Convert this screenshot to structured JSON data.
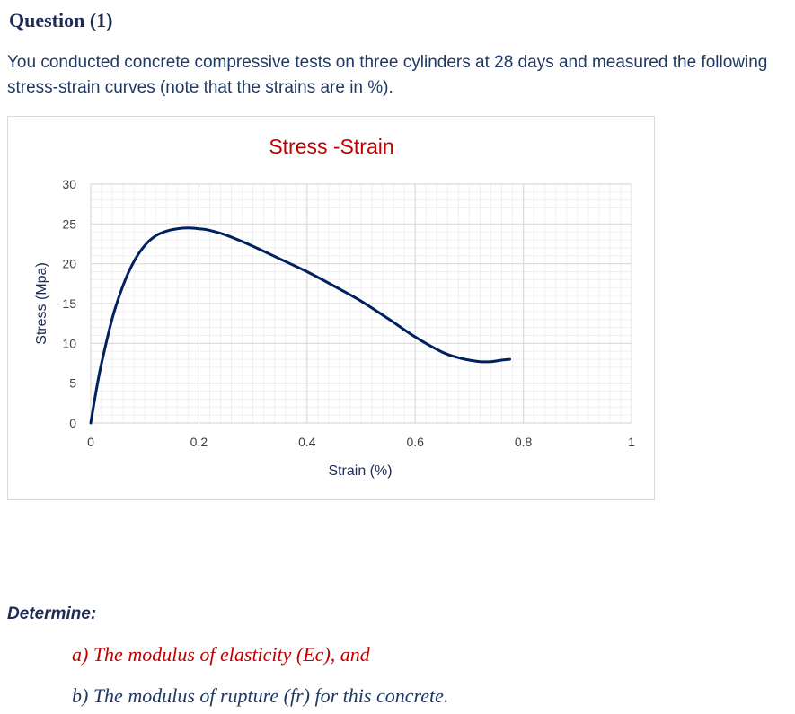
{
  "question": {
    "title": "Question (1)",
    "intro": "You conducted concrete compressive tests on three cylinders at 28 days and measured the following stress-strain curves (note that the strains are in %)."
  },
  "chart_data": {
    "type": "line",
    "title": "Stress -Strain",
    "xlabel": "Strain (%)",
    "ylabel": "Stress (Mpa)",
    "xlim": [
      0,
      1
    ],
    "ylim": [
      0,
      30
    ],
    "xticks": [
      0,
      0.2,
      0.4,
      0.6,
      0.8,
      1
    ],
    "xtick_labels": [
      "0",
      "0.2",
      "0.4",
      "0.6",
      "0.8",
      "1"
    ],
    "yticks": [
      0,
      5,
      10,
      15,
      20,
      25,
      30
    ],
    "ytick_labels": [
      "0",
      "5",
      "10",
      "15",
      "20",
      "25",
      "30"
    ],
    "grid": true,
    "legend": "none",
    "colors": {
      "line": "#002060",
      "title": "#c00000",
      "major_grid": "#d9d9d9",
      "minor_grid": "#efefef"
    },
    "series": [
      {
        "x": [
          0,
          0.01,
          0.02,
          0.04,
          0.06,
          0.08,
          0.1,
          0.12,
          0.14,
          0.16,
          0.18,
          0.2,
          0.22,
          0.25,
          0.3,
          0.35,
          0.4,
          0.45,
          0.5,
          0.55,
          0.6,
          0.65,
          0.68,
          0.7,
          0.72,
          0.74,
          0.76,
          0.775
        ],
        "y": [
          0,
          4,
          7.5,
          13.2,
          17.3,
          20.3,
          22.3,
          23.5,
          24.1,
          24.4,
          24.5,
          24.4,
          24.2,
          23.6,
          22.2,
          20.6,
          19.0,
          17.2,
          15.3,
          13.1,
          10.8,
          8.9,
          8.2,
          7.9,
          7.7,
          7.7,
          7.9,
          8.0
        ]
      }
    ]
  },
  "determine": {
    "heading": "Determine:",
    "items": [
      "a) The modulus of elasticity (Ec), and",
      "b) The modulus of rupture (fr) for this concrete."
    ]
  }
}
